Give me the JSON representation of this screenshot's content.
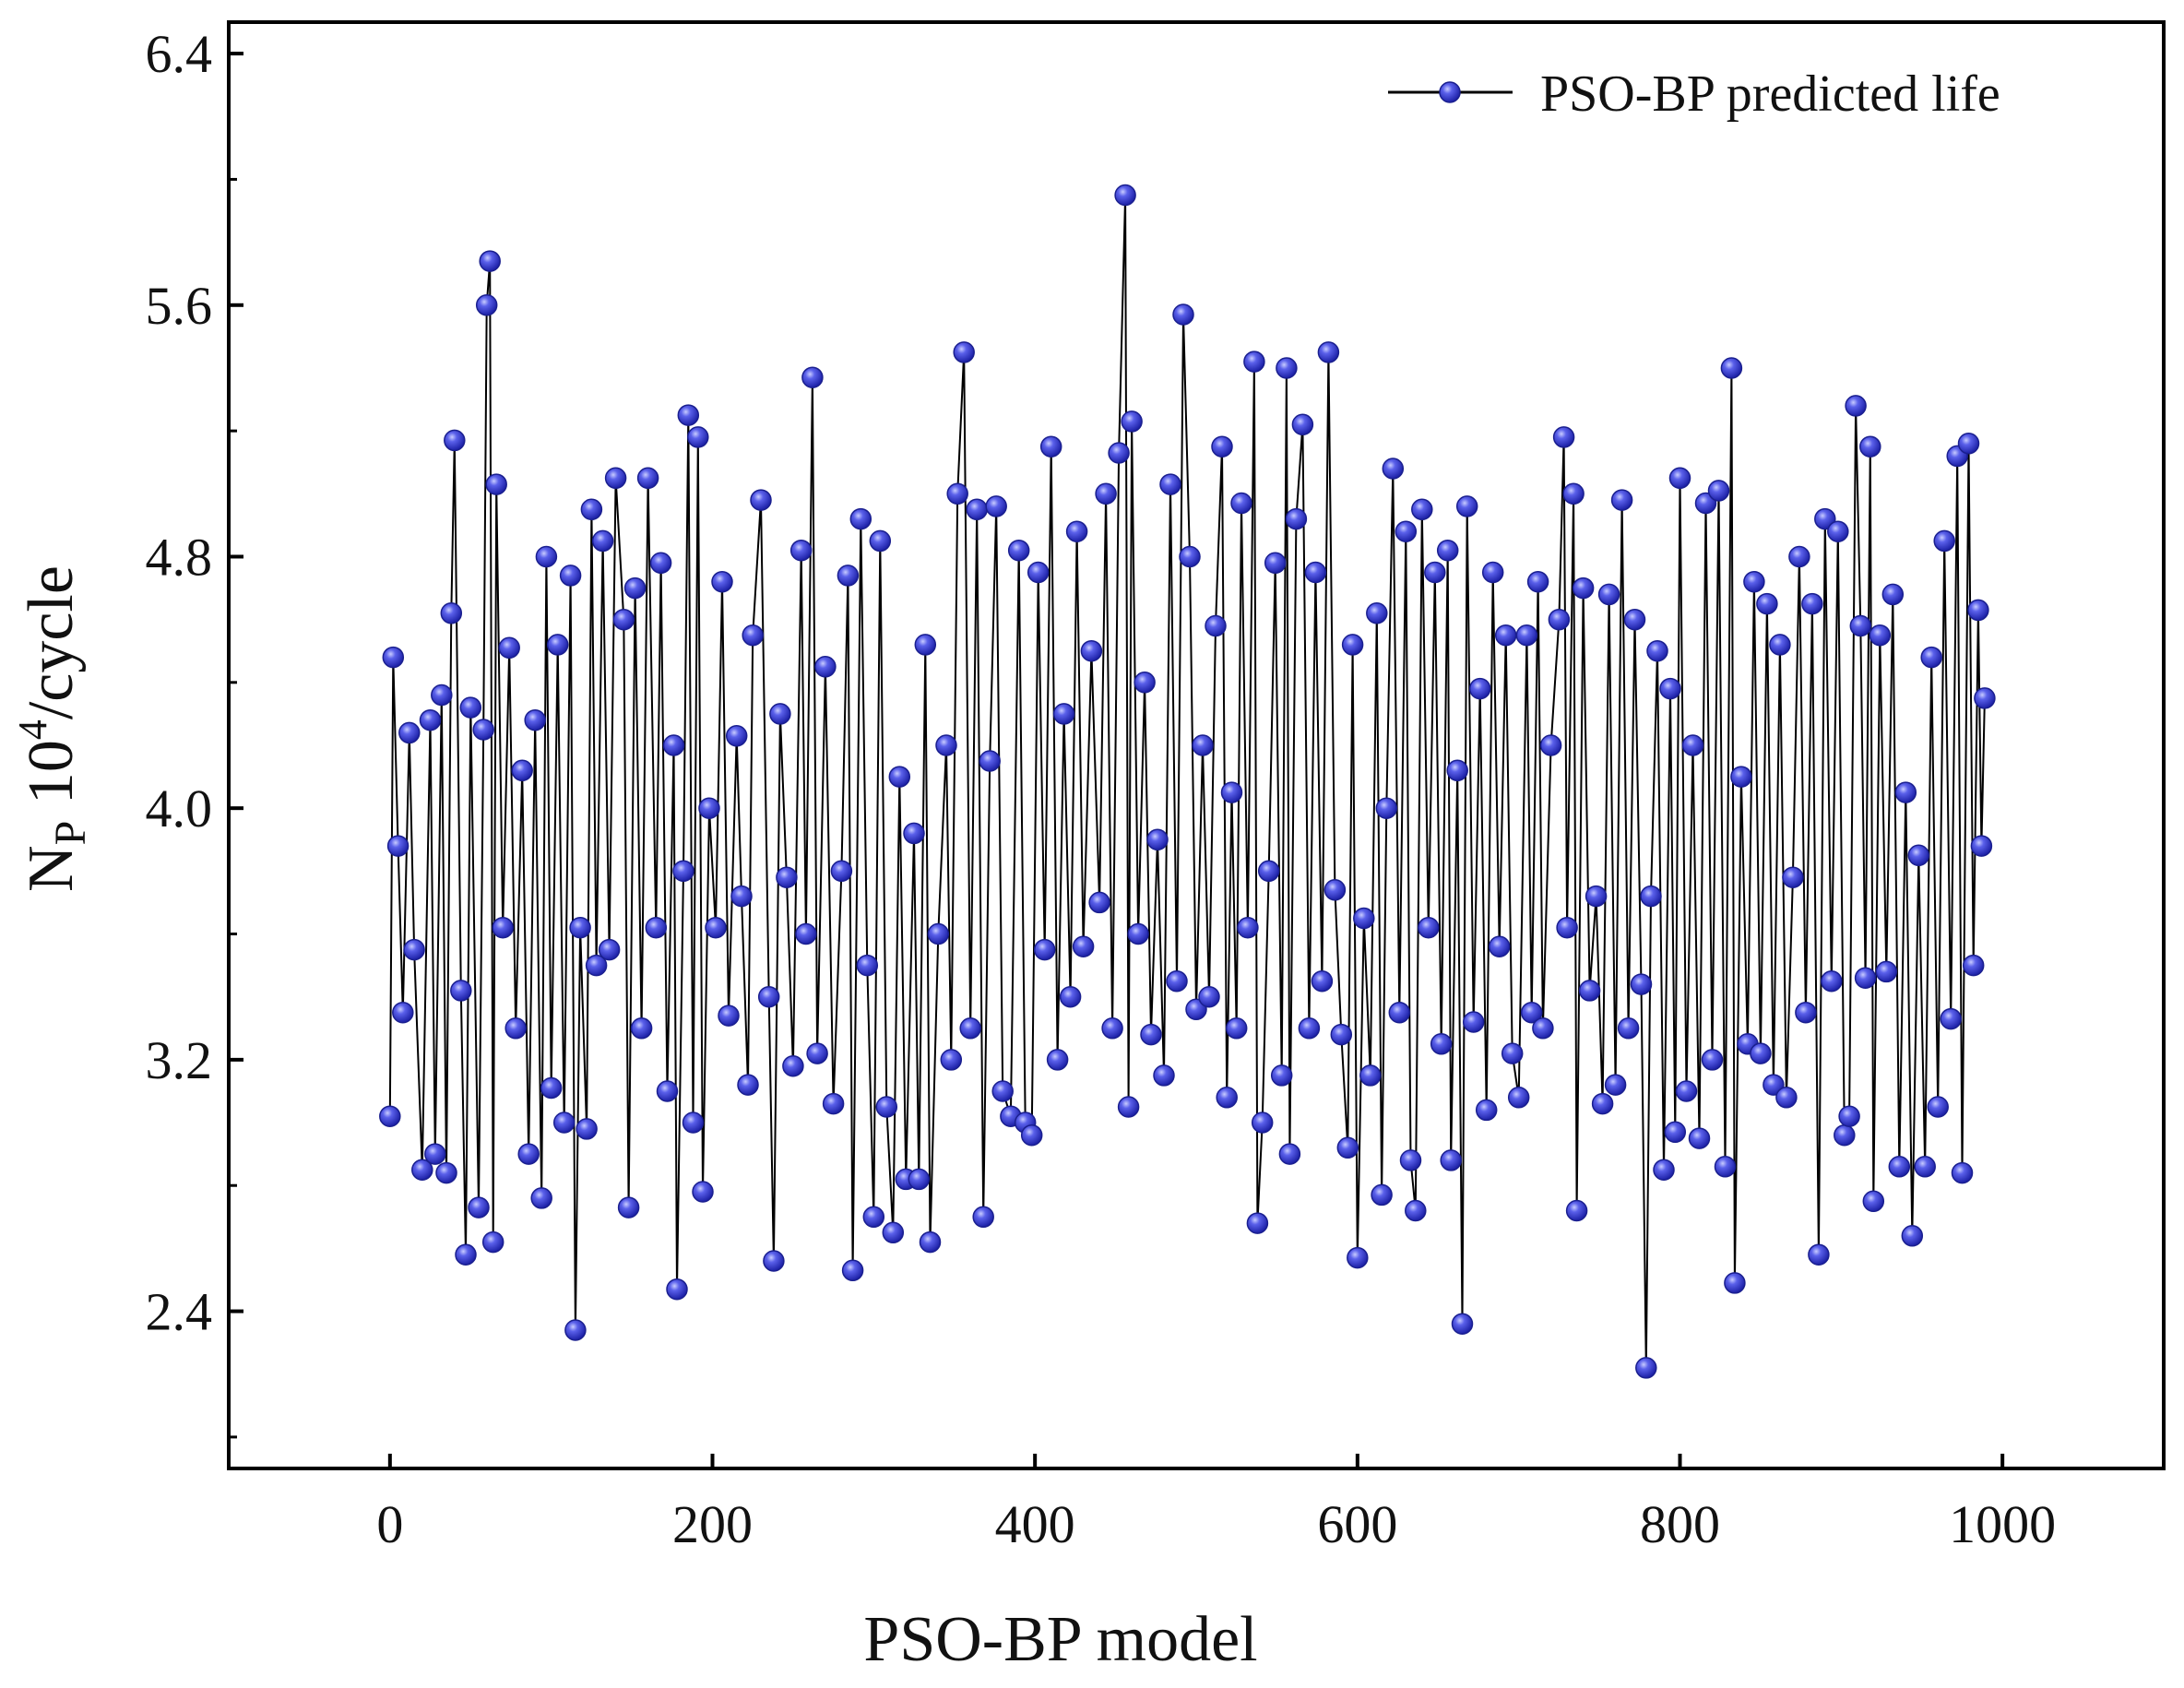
{
  "chart_data": {
    "type": "line",
    "title": "",
    "xlabel": "PSO-BP model",
    "ylabel": {
      "symbol": "N",
      "subscript": "P",
      "base": " 10",
      "exponent": "4",
      "unit": "/cycle"
    },
    "xlim": [
      -100,
      1100
    ],
    "ylim": [
      1.9,
      6.5
    ],
    "xticks": [
      0,
      200,
      400,
      600,
      800,
      1000
    ],
    "xtick_labels": [
      "0",
      "200",
      "400",
      "600",
      "800",
      "1000"
    ],
    "yticks": [
      2.4,
      3.2,
      4.0,
      4.8,
      5.6,
      6.4
    ],
    "ytick_labels": [
      "2.4",
      "3.2",
      "4.0",
      "4.8",
      "5.6",
      "6.4"
    ],
    "y_minor_ticks": [
      2.0,
      2.8,
      3.6,
      4.4,
      5.2,
      6.0
    ],
    "legend": {
      "position": "top-right",
      "entries": [
        "PSO-BP predicted life"
      ]
    },
    "grid": false,
    "colors": {
      "marker": "#3a3fd6",
      "marker_highlight": "#aab0ff",
      "line": "#000000",
      "axis": "#000000"
    },
    "series": [
      {
        "name": "PSO-BP predicted life",
        "marker": "circle",
        "line_color": "#000000",
        "marker_color": "#3a3fd6",
        "points": [
          [
            0,
            3.02
          ],
          [
            2,
            4.48
          ],
          [
            5,
            3.88
          ],
          [
            8,
            3.35
          ],
          [
            12,
            4.24
          ],
          [
            15,
            3.55
          ],
          [
            20,
            2.85
          ],
          [
            25,
            4.28
          ],
          [
            28,
            2.9
          ],
          [
            32,
            4.36
          ],
          [
            35,
            2.84
          ],
          [
            38,
            4.62
          ],
          [
            40,
            5.17
          ],
          [
            44,
            3.42
          ],
          [
            47,
            2.58
          ],
          [
            50,
            4.32
          ],
          [
            55,
            2.73
          ],
          [
            58,
            4.25
          ],
          [
            60,
            5.6
          ],
          [
            62,
            5.74
          ],
          [
            64,
            2.62
          ],
          [
            66,
            5.03
          ],
          [
            70,
            3.62
          ],
          [
            74,
            4.51
          ],
          [
            78,
            3.3
          ],
          [
            82,
            4.12
          ],
          [
            86,
            2.9
          ],
          [
            90,
            4.28
          ],
          [
            94,
            2.76
          ],
          [
            97,
            4.8
          ],
          [
            100,
            3.11
          ],
          [
            104,
            4.52
          ],
          [
            108,
            3.0
          ],
          [
            112,
            4.74
          ],
          [
            115,
            2.34
          ],
          [
            118,
            3.62
          ],
          [
            122,
            2.98
          ],
          [
            125,
            4.95
          ],
          [
            128,
            3.5
          ],
          [
            132,
            4.85
          ],
          [
            136,
            3.55
          ],
          [
            140,
            5.05
          ],
          [
            145,
            4.6
          ],
          [
            148,
            2.73
          ],
          [
            152,
            4.7
          ],
          [
            156,
            3.3
          ],
          [
            160,
            5.05
          ],
          [
            165,
            3.62
          ],
          [
            168,
            4.78
          ],
          [
            172,
            3.1
          ],
          [
            176,
            4.2
          ],
          [
            178,
            2.47
          ],
          [
            182,
            3.8
          ],
          [
            185,
            5.25
          ],
          [
            188,
            3.0
          ],
          [
            191,
            5.18
          ],
          [
            194,
            2.78
          ],
          [
            198,
            4.0
          ],
          [
            202,
            3.62
          ],
          [
            206,
            4.72
          ],
          [
            210,
            3.34
          ],
          [
            215,
            4.23
          ],
          [
            218,
            3.72
          ],
          [
            222,
            3.12
          ],
          [
            225,
            4.55
          ],
          [
            230,
            4.98
          ],
          [
            235,
            3.4
          ],
          [
            238,
            2.56
          ],
          [
            242,
            4.3
          ],
          [
            246,
            3.78
          ],
          [
            250,
            3.18
          ],
          [
            255,
            4.82
          ],
          [
            258,
            3.6
          ],
          [
            262,
            5.37
          ],
          [
            265,
            3.22
          ],
          [
            270,
            4.45
          ],
          [
            275,
            3.06
          ],
          [
            280,
            3.8
          ],
          [
            284,
            4.74
          ],
          [
            287,
            2.53
          ],
          [
            292,
            4.92
          ],
          [
            296,
            3.5
          ],
          [
            300,
            2.7
          ],
          [
            304,
            4.85
          ],
          [
            308,
            3.05
          ],
          [
            312,
            2.65
          ],
          [
            316,
            4.1
          ],
          [
            320,
            2.82
          ],
          [
            325,
            3.92
          ],
          [
            328,
            2.82
          ],
          [
            332,
            4.52
          ],
          [
            335,
            2.62
          ],
          [
            340,
            3.6
          ],
          [
            345,
            4.2
          ],
          [
            348,
            3.2
          ],
          [
            352,
            5.0
          ],
          [
            356,
            5.45
          ],
          [
            360,
            3.3
          ],
          [
            364,
            4.95
          ],
          [
            368,
            2.7
          ],
          [
            372,
            4.15
          ],
          [
            376,
            4.96
          ],
          [
            380,
            3.1
          ],
          [
            385,
            3.02
          ],
          [
            390,
            4.82
          ],
          [
            394,
            3.0
          ],
          [
            398,
            2.96
          ],
          [
            402,
            4.75
          ],
          [
            406,
            3.55
          ],
          [
            410,
            5.15
          ],
          [
            414,
            3.2
          ],
          [
            418,
            4.3
          ],
          [
            422,
            3.4
          ],
          [
            426,
            4.88
          ],
          [
            430,
            3.56
          ],
          [
            435,
            4.5
          ],
          [
            440,
            3.7
          ],
          [
            444,
            5.0
          ],
          [
            448,
            3.3
          ],
          [
            452,
            5.13
          ],
          [
            456,
            5.95
          ],
          [
            458,
            3.05
          ],
          [
            460,
            5.23
          ],
          [
            464,
            3.6
          ],
          [
            468,
            4.4
          ],
          [
            472,
            3.28
          ],
          [
            476,
            3.9
          ],
          [
            480,
            3.15
          ],
          [
            484,
            5.03
          ],
          [
            488,
            3.45
          ],
          [
            492,
            5.57
          ],
          [
            496,
            4.8
          ],
          [
            500,
            3.36
          ],
          [
            504,
            4.2
          ],
          [
            508,
            3.4
          ],
          [
            512,
            4.58
          ],
          [
            516,
            5.15
          ],
          [
            519,
            3.08
          ],
          [
            522,
            4.05
          ],
          [
            525,
            3.3
          ],
          [
            528,
            4.97
          ],
          [
            532,
            3.62
          ],
          [
            536,
            5.42
          ],
          [
            538,
            2.68
          ],
          [
            541,
            3.0
          ],
          [
            545,
            3.8
          ],
          [
            549,
            4.78
          ],
          [
            553,
            3.15
          ],
          [
            556,
            5.4
          ],
          [
            558,
            2.9
          ],
          [
            562,
            4.92
          ],
          [
            566,
            5.22
          ],
          [
            570,
            3.3
          ],
          [
            574,
            4.75
          ],
          [
            578,
            3.45
          ],
          [
            582,
            5.45
          ],
          [
            586,
            3.74
          ],
          [
            590,
            3.28
          ],
          [
            594,
            2.92
          ],
          [
            597,
            4.52
          ],
          [
            600,
            2.57
          ],
          [
            604,
            3.65
          ],
          [
            608,
            3.15
          ],
          [
            612,
            4.62
          ],
          [
            615,
            2.77
          ],
          [
            618,
            4.0
          ],
          [
            622,
            5.08
          ],
          [
            626,
            3.35
          ],
          [
            630,
            4.88
          ],
          [
            633,
            2.88
          ],
          [
            636,
            2.72
          ],
          [
            640,
            4.95
          ],
          [
            644,
            3.62
          ],
          [
            648,
            4.75
          ],
          [
            652,
            3.25
          ],
          [
            656,
            4.82
          ],
          [
            658,
            2.88
          ],
          [
            662,
            4.12
          ],
          [
            665,
            2.36
          ],
          [
            668,
            4.96
          ],
          [
            672,
            3.32
          ],
          [
            676,
            4.38
          ],
          [
            680,
            3.04
          ],
          [
            684,
            4.75
          ],
          [
            688,
            3.56
          ],
          [
            692,
            4.55
          ],
          [
            696,
            3.22
          ],
          [
            700,
            3.08
          ],
          [
            705,
            4.55
          ],
          [
            708,
            3.35
          ],
          [
            712,
            4.72
          ],
          [
            715,
            3.3
          ],
          [
            720,
            4.2
          ],
          [
            725,
            4.6
          ],
          [
            728,
            5.18
          ],
          [
            730,
            3.62
          ],
          [
            734,
            5.0
          ],
          [
            736,
            2.72
          ],
          [
            740,
            4.7
          ],
          [
            744,
            3.42
          ],
          [
            748,
            3.72
          ],
          [
            752,
            3.06
          ],
          [
            756,
            4.68
          ],
          [
            760,
            3.12
          ],
          [
            764,
            4.98
          ],
          [
            768,
            3.3
          ],
          [
            772,
            4.6
          ],
          [
            776,
            3.44
          ],
          [
            779,
            2.22
          ],
          [
            782,
            3.72
          ],
          [
            786,
            4.5
          ],
          [
            790,
            2.85
          ],
          [
            794,
            4.38
          ],
          [
            797,
            2.97
          ],
          [
            800,
            5.05
          ],
          [
            804,
            3.1
          ],
          [
            808,
            4.2
          ],
          [
            812,
            2.95
          ],
          [
            816,
            4.97
          ],
          [
            820,
            3.2
          ],
          [
            824,
            5.01
          ],
          [
            828,
            2.86
          ],
          [
            832,
            5.4
          ],
          [
            834,
            2.49
          ],
          [
            838,
            4.1
          ],
          [
            842,
            3.25
          ],
          [
            846,
            4.72
          ],
          [
            850,
            3.22
          ],
          [
            854,
            4.65
          ],
          [
            858,
            3.12
          ],
          [
            862,
            4.52
          ],
          [
            866,
            3.08
          ],
          [
            870,
            3.78
          ],
          [
            874,
            4.8
          ],
          [
            878,
            3.35
          ],
          [
            882,
            4.65
          ],
          [
            886,
            2.58
          ],
          [
            890,
            4.92
          ],
          [
            894,
            3.45
          ],
          [
            898,
            4.88
          ],
          [
            902,
            2.96
          ],
          [
            905,
            3.02
          ],
          [
            909,
            5.28
          ],
          [
            912,
            4.58
          ],
          [
            915,
            3.46
          ],
          [
            918,
            5.15
          ],
          [
            920,
            2.75
          ],
          [
            924,
            4.55
          ],
          [
            928,
            3.48
          ],
          [
            932,
            4.68
          ],
          [
            936,
            2.86
          ],
          [
            940,
            4.05
          ],
          [
            944,
            2.64
          ],
          [
            948,
            3.85
          ],
          [
            952,
            2.86
          ],
          [
            956,
            4.48
          ],
          [
            960,
            3.05
          ],
          [
            964,
            4.85
          ],
          [
            968,
            3.33
          ],
          [
            972,
            5.12
          ],
          [
            975,
            2.84
          ],
          [
            979,
            5.16
          ],
          [
            982,
            3.5
          ],
          [
            985,
            4.63
          ],
          [
            987,
            3.88
          ],
          [
            989,
            4.35
          ]
        ]
      }
    ]
  }
}
